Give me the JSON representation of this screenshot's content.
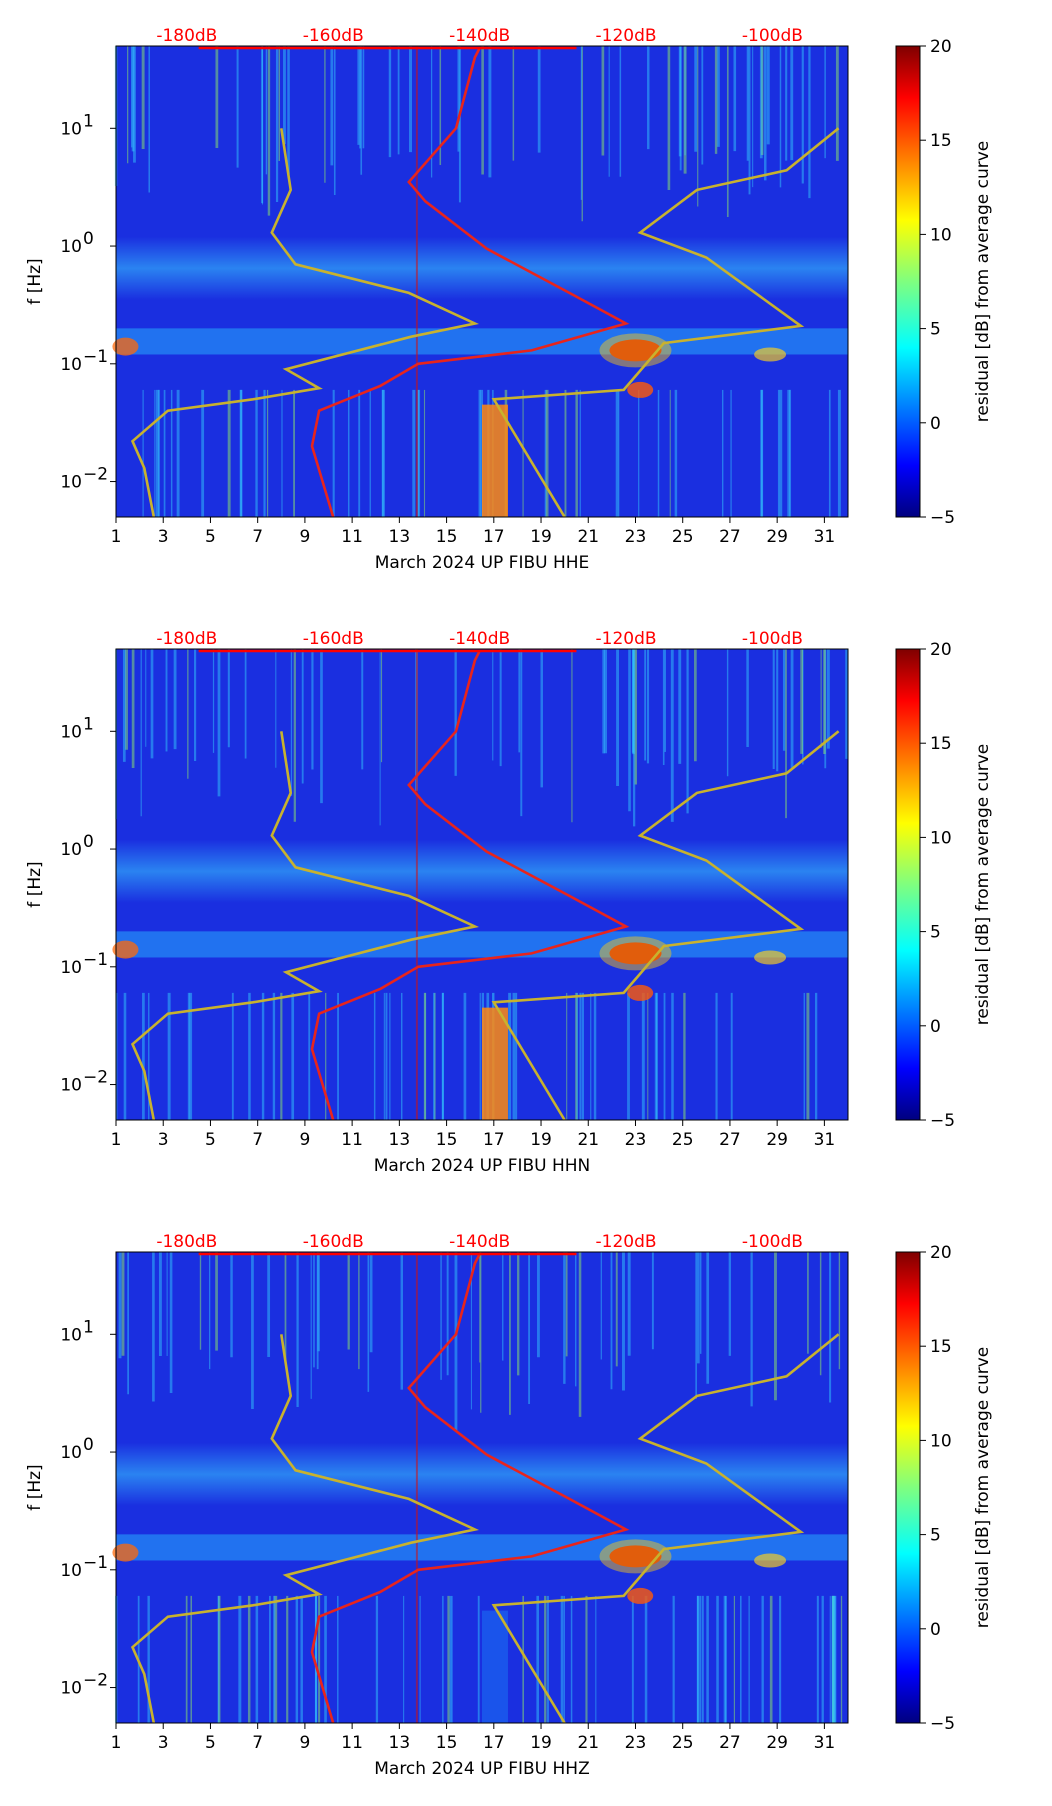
{
  "figure": {
    "chart_data": [
      {
        "type": "heatmap",
        "xlabel": "March 2024 UP FIBU  HHE",
        "ylabel": "f [Hz]",
        "colorbar_label": "residual [dB] from average curve"
      },
      {
        "type": "heatmap",
        "xlabel": "March 2024 UP FIBU  HHN",
        "ylabel": "f [Hz]",
        "colorbar_label": "residual [dB] from average curve"
      },
      {
        "type": "heatmap",
        "xlabel": "March 2024 UP FIBU  HHZ",
        "ylabel": "f [Hz]",
        "colorbar_label": "residual [dB] from average curve"
      }
    ],
    "shared": {
      "x_ticks": [
        1,
        3,
        5,
        7,
        9,
        11,
        13,
        15,
        17,
        19,
        21,
        23,
        25,
        27,
        29,
        31
      ],
      "x_range": [
        1,
        32
      ],
      "y_scale": "log",
      "y_range": [
        0.005,
        50
      ],
      "y_ticks": [
        {
          "value": 0.01,
          "base": "10",
          "exp": "−2"
        },
        {
          "value": 0.1,
          "base": "10",
          "exp": "−1"
        },
        {
          "value": 1,
          "base": "10",
          "exp": "0"
        },
        {
          "value": 10,
          "base": "10",
          "exp": "1"
        }
      ],
      "colorbar_range": [
        -5,
        20
      ],
      "colorbar_ticks": [
        "20",
        "15",
        "10",
        "5",
        "0",
        "−5"
      ],
      "colormap": "jet",
      "top_scale_labels": [
        "-180dB",
        "-160dB",
        "-140dB",
        "-120dB",
        "-100dB"
      ],
      "top_scale_positions_day": [
        4.0,
        10.2,
        16.4,
        22.6,
        28.8
      ],
      "top_scale_color": "#ff0000",
      "psd_curve_color": "#e8241c",
      "reference_curve_color": "#c8b22e"
    }
  }
}
